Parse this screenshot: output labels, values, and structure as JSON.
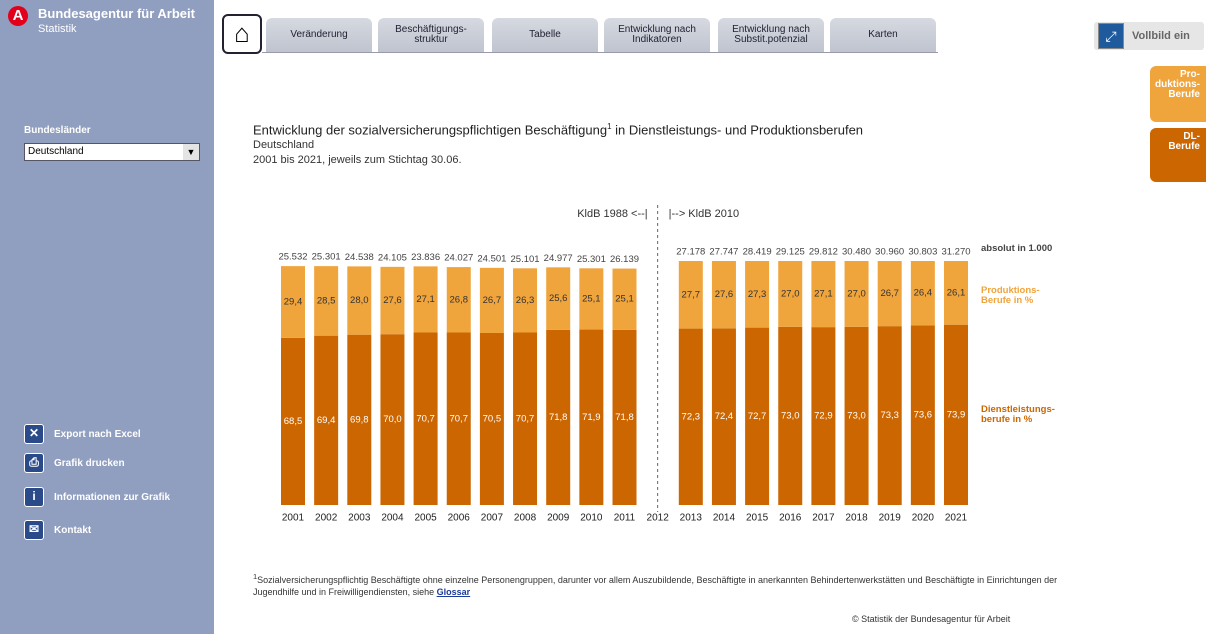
{
  "header": {
    "brand": "Bundesagentur für Arbeit",
    "sub": "Statistik"
  },
  "sidebar": {
    "filter_label": "Bundesländer",
    "filter_value": "Deutschland",
    "menu": [
      "Export nach Excel",
      "Grafik drucken",
      "Informationen zur Grafik",
      "Kontakt"
    ]
  },
  "tabs": [
    "Veränderung",
    "Beschäftigungs-\nstruktur",
    "Tabelle",
    "Entwicklung nach\nIndikatoren",
    "Entwicklung nach\nSubstit.potenzial",
    "Karten"
  ],
  "fullscreen": "Vollbild ein",
  "side_buttons": [
    "Pro-\nduktions-\nBerufe",
    "DL-\nBerufe"
  ],
  "heading": {
    "title": "Entwicklung der sozialversicherungspflichtigen Beschäftigung",
    "title_sup": "1",
    "title_rest": " in Dienstleistungs- und Produktionsberufen",
    "region": "Deutschland",
    "period": "2001 bis 2021, jeweils zum Stichtag 30.06."
  },
  "chart_data": {
    "type": "stacked-bar",
    "ylim": [
      0,
      100
    ],
    "categories": [
      "2001",
      "2002",
      "2003",
      "2004",
      "2005",
      "2006",
      "2007",
      "2008",
      "2009",
      "2010",
      "2011",
      "2012",
      "2013",
      "2014",
      "2015",
      "2016",
      "2017",
      "2018",
      "2019",
      "2020",
      "2021"
    ],
    "annotations": [
      "KldB 1988 <--|",
      "|--> KldB 2010"
    ],
    "series": [
      {
        "name": "Dienstleistungs-\nberufe in %",
        "color": "#cc6600",
        "label_color": "#ffffff",
        "values": [
          68.5,
          69.4,
          69.8,
          70.0,
          70.7,
          70.7,
          70.5,
          70.7,
          71.8,
          71.9,
          71.8,
          null,
          72.3,
          72.4,
          72.7,
          73.0,
          72.9,
          73.0,
          73.3,
          73.6,
          73.9
        ],
        "value_labels": [
          "68,5",
          "69,4",
          "69,8",
          "70,0",
          "70,7",
          "70,7",
          "70,5",
          "70,7",
          "71,8",
          "71,9",
          "71,8",
          null,
          "72,3",
          "72,4",
          "72,7",
          "73,0",
          "72,9",
          "73,0",
          "73,3",
          "73,6",
          "73,9"
        ]
      },
      {
        "name": "Produktions-\nBerufe in %",
        "color": "#f0a43c",
        "label_color": "#333333",
        "values": [
          29.4,
          28.5,
          28.0,
          27.6,
          27.1,
          26.8,
          26.7,
          26.3,
          25.6,
          25.1,
          25.1,
          null,
          27.7,
          27.6,
          27.3,
          27.0,
          27.1,
          27.0,
          26.7,
          26.4,
          26.1
        ],
        "value_labels": [
          "29,4",
          "28,5",
          "28,0",
          "27,6",
          "27,1",
          "26,8",
          "26,7",
          "26,3",
          "25,6",
          "25,1",
          "25,1",
          null,
          "27,7",
          "27,6",
          "27,3",
          "27,0",
          "27,1",
          "27,0",
          "26,7",
          "26,4",
          "26,1"
        ]
      }
    ],
    "totals": {
      "name": "absolut in 1.000",
      "values": [
        25532,
        25301,
        24538,
        24105,
        23836,
        24027,
        24501,
        25101,
        24977,
        25301,
        26139,
        null,
        27178,
        27747,
        28419,
        29125,
        29812,
        30480,
        30960,
        30803,
        31270
      ],
      "value_labels": [
        "25.532",
        "25.301",
        "24.538",
        "24.105",
        "23.836",
        "24.027",
        "24.501",
        "25.101",
        "24.977",
        "25.301",
        "26.139",
        null,
        "27.178",
        "27.747",
        "28.419",
        "29.125",
        "29.812",
        "30.480",
        "30.960",
        "30.803",
        "31.270"
      ]
    }
  },
  "footnote": {
    "mark": "1",
    "text": "Sozialversicherungspflichtig Beschäftigte ohne einzelne Personengruppen, darunter vor allem Auszubildende, Beschäftigte in anerkannten Behindertenwerkstätten und Beschäftigte in Einrichtungen der Jugendhilfe und in Freiwilligendiensten, siehe ",
    "link": "Glossar"
  },
  "copyright": "© Statistik der Bundesagentur für Arbeit"
}
